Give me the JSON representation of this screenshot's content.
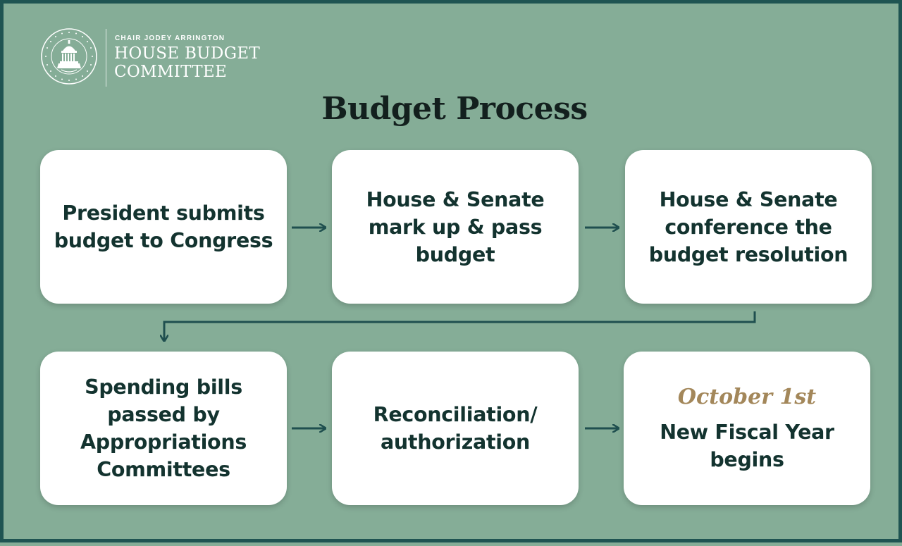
{
  "header": {
    "chair_label": "CHAIR JODEY ARRINGTON",
    "committee_line1": "HOUSE BUDGET",
    "committee_line2": "COMMITTEE",
    "seal_icon": "capitol-seal-icon"
  },
  "title": "Budget Process",
  "steps": [
    {
      "text": "President submits budget to Congress"
    },
    {
      "text": "House & Senate mark up & pass budget"
    },
    {
      "text": "House & Senate conference the budget resolution"
    },
    {
      "text": "Spending bills passed by Appropriations Committees"
    },
    {
      "text": "Reconciliation/ authorization"
    },
    {
      "date": "October 1st",
      "text": "New Fiscal Year begins"
    }
  ],
  "colors": {
    "background": "#85ad97",
    "border": "#1f5452",
    "box": "#ffffff",
    "text": "#13332f",
    "arrow": "#1f4f4f",
    "date_accent": "#a3875a"
  }
}
